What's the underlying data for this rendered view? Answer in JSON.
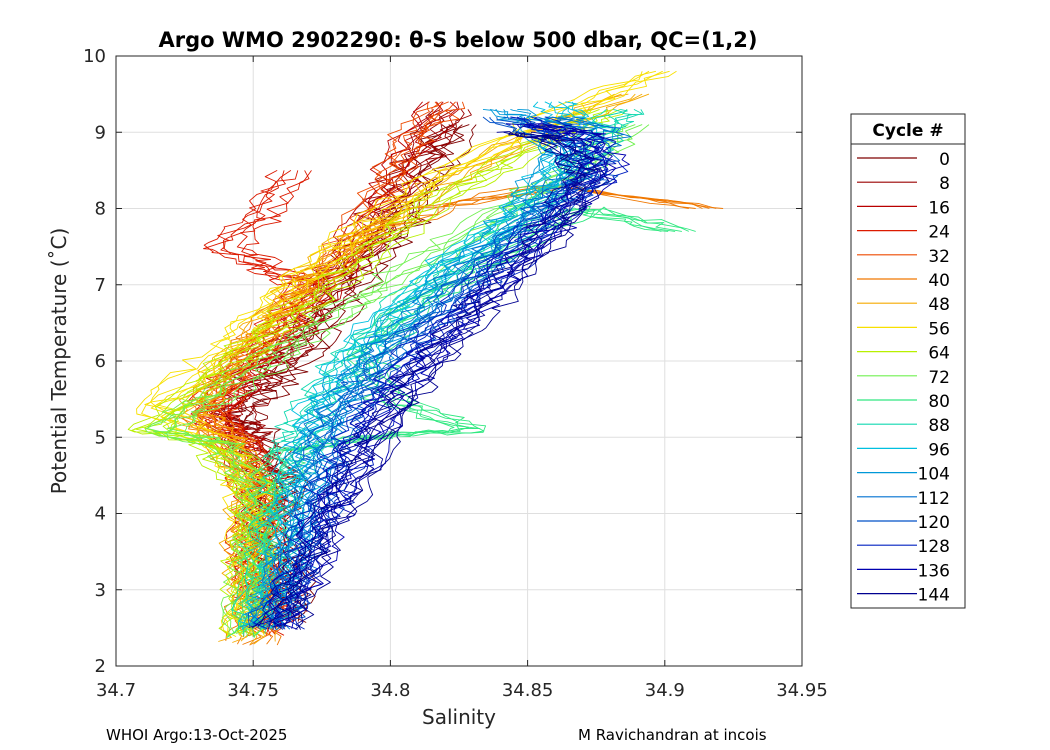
{
  "chart_data": {
    "type": "line",
    "title": "Argo WMO 2902290: θ-S below 500 dbar,  QC=(1,2)",
    "xlabel": "Salinity",
    "ylabel": "Potential Temperature (˚C)",
    "xlim": [
      34.7,
      34.95
    ],
    "ylim": [
      2,
      10
    ],
    "x_ticks": [
      34.7,
      34.75,
      34.8,
      34.85,
      34.9,
      34.95
    ],
    "x_tick_labels": [
      "34.7",
      "34.75",
      "34.8",
      "34.85",
      "34.9",
      "34.95"
    ],
    "y_ticks": [
      2,
      3,
      4,
      5,
      6,
      7,
      8,
      9,
      10
    ],
    "y_tick_labels": [
      "2",
      "3",
      "4",
      "5",
      "6",
      "7",
      "8",
      "9",
      "10"
    ],
    "grid": true,
    "legend": {
      "title": "Cycle #",
      "placement": "right-outside",
      "entries": [
        {
          "label": "0",
          "color": "#7f0000"
        },
        {
          "label": "8",
          "color": "#9a0000"
        },
        {
          "label": "16",
          "color": "#b90000"
        },
        {
          "label": "24",
          "color": "#dc1a00"
        },
        {
          "label": "32",
          "color": "#ee4a00"
        },
        {
          "label": "40",
          "color": "#f07800"
        },
        {
          "label": "48",
          "color": "#f5aa00"
        },
        {
          "label": "56",
          "color": "#f8e000"
        },
        {
          "label": "64",
          "color": "#b8f000"
        },
        {
          "label": "72",
          "color": "#70f050"
        },
        {
          "label": "80",
          "color": "#30e880"
        },
        {
          "label": "88",
          "color": "#10d8b0"
        },
        {
          "label": "96",
          "color": "#00c0e0"
        },
        {
          "label": "104",
          "color": "#0098d8"
        },
        {
          "label": "112",
          "color": "#0070d0"
        },
        {
          "label": "120",
          "color": "#0050c8"
        },
        {
          "label": "128",
          "color": "#0020c0"
        },
        {
          "label": "136",
          "color": "#0000b0"
        },
        {
          "label": "144",
          "color": "#000090"
        }
      ]
    },
    "series_envelope_note": "Each series is one cycle's approximate theta-S profile (salinity, theta) sampled at depth levels; estimated from the figure.",
    "series": [
      {
        "name": "0",
        "points": [
          [
            34.764,
            2.6
          ],
          [
            34.762,
            3.2
          ],
          [
            34.758,
            3.8
          ],
          [
            34.76,
            4.4
          ],
          [
            34.752,
            5.0
          ],
          [
            34.745,
            5.3
          ],
          [
            34.756,
            5.7
          ],
          [
            34.77,
            6.2
          ],
          [
            34.782,
            6.8
          ],
          [
            34.795,
            7.4
          ],
          [
            34.808,
            8.0
          ],
          [
            34.815,
            8.6
          ],
          [
            34.825,
            9.1
          ]
        ]
      },
      {
        "name": "8",
        "points": [
          [
            34.76,
            2.7
          ],
          [
            34.757,
            3.3
          ],
          [
            34.755,
            3.9
          ],
          [
            34.758,
            4.5
          ],
          [
            34.748,
            5.0
          ],
          [
            34.742,
            5.3
          ],
          [
            34.752,
            5.8
          ],
          [
            34.766,
            6.3
          ],
          [
            34.778,
            6.9
          ],
          [
            34.79,
            7.5
          ],
          [
            34.8,
            8.1
          ],
          [
            34.812,
            8.7
          ],
          [
            34.822,
            9.3
          ]
        ]
      },
      {
        "name": "16",
        "points": [
          [
            34.757,
            2.5
          ],
          [
            34.754,
            3.1
          ],
          [
            34.752,
            3.7
          ],
          [
            34.755,
            4.3
          ],
          [
            34.746,
            4.9
          ],
          [
            34.736,
            5.3
          ],
          [
            34.748,
            5.8
          ],
          [
            34.762,
            6.3
          ],
          [
            34.774,
            6.9
          ],
          [
            34.786,
            7.4
          ],
          [
            34.795,
            8.0
          ],
          [
            34.805,
            8.7
          ],
          [
            34.818,
            9.4
          ]
        ]
      },
      {
        "name": "24",
        "points": [
          [
            34.755,
            2.4
          ],
          [
            34.752,
            3.0
          ],
          [
            34.75,
            3.6
          ],
          [
            34.752,
            4.2
          ],
          [
            34.748,
            4.8
          ],
          [
            34.735,
            5.4
          ],
          [
            34.746,
            5.9
          ],
          [
            34.76,
            6.5
          ],
          [
            34.77,
            7.0
          ],
          [
            34.756,
            7.2
          ],
          [
            34.74,
            7.5
          ],
          [
            34.752,
            7.9
          ],
          [
            34.765,
            8.5
          ]
        ]
      },
      {
        "name": "32",
        "points": [
          [
            34.753,
            2.4
          ],
          [
            34.751,
            3.0
          ],
          [
            34.75,
            3.6
          ],
          [
            34.752,
            4.2
          ],
          [
            34.745,
            4.8
          ],
          [
            34.733,
            5.3
          ],
          [
            34.745,
            5.9
          ],
          [
            34.758,
            6.4
          ],
          [
            34.772,
            7.0
          ],
          [
            34.788,
            7.6
          ],
          [
            34.798,
            8.3
          ],
          [
            34.808,
            8.9
          ],
          [
            34.82,
            9.4
          ]
        ]
      },
      {
        "name": "40",
        "points": [
          [
            34.75,
            2.3
          ],
          [
            34.75,
            3.0
          ],
          [
            34.749,
            3.7
          ],
          [
            34.751,
            4.3
          ],
          [
            34.743,
            4.9
          ],
          [
            34.73,
            5.3
          ],
          [
            34.742,
            5.9
          ],
          [
            34.756,
            6.5
          ],
          [
            34.772,
            7.0
          ],
          [
            34.79,
            7.6
          ],
          [
            34.815,
            8.0
          ],
          [
            34.86,
            8.3
          ],
          [
            34.915,
            8.0
          ]
        ]
      },
      {
        "name": "48",
        "points": [
          [
            34.748,
            2.3
          ],
          [
            34.749,
            3.0
          ],
          [
            34.748,
            3.7
          ],
          [
            34.75,
            4.3
          ],
          [
            34.742,
            4.9
          ],
          [
            34.728,
            5.3
          ],
          [
            34.74,
            5.9
          ],
          [
            34.754,
            6.5
          ],
          [
            34.77,
            7.1
          ],
          [
            34.792,
            7.7
          ],
          [
            34.818,
            8.3
          ],
          [
            34.85,
            8.9
          ],
          [
            34.888,
            9.5
          ]
        ]
      },
      {
        "name": "56",
        "points": [
          [
            34.746,
            2.4
          ],
          [
            34.748,
            3.0
          ],
          [
            34.748,
            3.7
          ],
          [
            34.749,
            4.3
          ],
          [
            34.738,
            4.9
          ],
          [
            34.712,
            5.4
          ],
          [
            34.732,
            5.9
          ],
          [
            34.75,
            6.5
          ],
          [
            34.768,
            7.1
          ],
          [
            34.792,
            7.8
          ],
          [
            34.82,
            8.5
          ],
          [
            34.86,
            9.2
          ],
          [
            34.898,
            9.8
          ]
        ]
      },
      {
        "name": "64",
        "points": [
          [
            34.745,
            2.4
          ],
          [
            34.748,
            3.1
          ],
          [
            34.749,
            3.7
          ],
          [
            34.75,
            4.3
          ],
          [
            34.735,
            4.9
          ],
          [
            34.712,
            5.1
          ],
          [
            34.73,
            5.6
          ],
          [
            34.75,
            6.2
          ],
          [
            34.772,
            6.8
          ],
          [
            34.796,
            7.5
          ],
          [
            34.822,
            8.2
          ],
          [
            34.852,
            8.8
          ],
          [
            34.88,
            9.3
          ]
        ]
      },
      {
        "name": "72",
        "points": [
          [
            34.745,
            2.4
          ],
          [
            34.749,
            3.1
          ],
          [
            34.75,
            3.7
          ],
          [
            34.752,
            4.3
          ],
          [
            34.74,
            4.9
          ],
          [
            34.716,
            5.1
          ],
          [
            34.736,
            5.5
          ],
          [
            34.756,
            6.0
          ],
          [
            34.78,
            6.6
          ],
          [
            34.808,
            7.2
          ],
          [
            34.838,
            7.9
          ],
          [
            34.866,
            8.5
          ],
          [
            34.888,
            9.1
          ]
        ]
      },
      {
        "name": "80",
        "points": [
          [
            34.748,
            2.4
          ],
          [
            34.752,
            3.1
          ],
          [
            34.755,
            3.7
          ],
          [
            34.758,
            4.3
          ],
          [
            34.762,
            4.8
          ],
          [
            34.79,
            5.0
          ],
          [
            34.83,
            5.1
          ],
          [
            34.8,
            5.5
          ],
          [
            34.79,
            6.1
          ],
          [
            34.812,
            6.8
          ],
          [
            34.84,
            7.4
          ],
          [
            34.87,
            8.0
          ],
          [
            34.905,
            7.7
          ]
        ]
      },
      {
        "name": "88",
        "points": [
          [
            34.75,
            2.5
          ],
          [
            34.755,
            3.1
          ],
          [
            34.758,
            3.8
          ],
          [
            34.762,
            4.4
          ],
          [
            34.765,
            4.9
          ],
          [
            34.772,
            5.4
          ],
          [
            34.785,
            6.0
          ],
          [
            34.8,
            6.6
          ],
          [
            34.82,
            7.2
          ],
          [
            34.845,
            7.8
          ],
          [
            34.865,
            8.4
          ],
          [
            34.878,
            9.0
          ],
          [
            34.885,
            9.3
          ]
        ]
      },
      {
        "name": "96",
        "points": [
          [
            34.752,
            2.5
          ],
          [
            34.758,
            3.1
          ],
          [
            34.762,
            3.8
          ],
          [
            34.766,
            4.4
          ],
          [
            34.77,
            5.0
          ],
          [
            34.778,
            5.6
          ],
          [
            34.79,
            6.2
          ],
          [
            34.806,
            6.8
          ],
          [
            34.826,
            7.4
          ],
          [
            34.848,
            8.0
          ],
          [
            34.862,
            8.6
          ],
          [
            34.87,
            9.1
          ],
          [
            34.86,
            9.4
          ]
        ]
      },
      {
        "name": "104",
        "points": [
          [
            34.755,
            2.5
          ],
          [
            34.76,
            3.1
          ],
          [
            34.764,
            3.8
          ],
          [
            34.768,
            4.4
          ],
          [
            34.772,
            5.0
          ],
          [
            34.782,
            5.6
          ],
          [
            34.796,
            6.2
          ],
          [
            34.812,
            6.8
          ],
          [
            34.83,
            7.4
          ],
          [
            34.85,
            8.0
          ],
          [
            34.86,
            8.6
          ],
          [
            34.855,
            9.1
          ],
          [
            34.84,
            9.3
          ]
        ]
      },
      {
        "name": "112",
        "points": [
          [
            34.756,
            2.5
          ],
          [
            34.762,
            3.1
          ],
          [
            34.768,
            3.8
          ],
          [
            34.772,
            4.4
          ],
          [
            34.776,
            5.0
          ],
          [
            34.786,
            5.6
          ],
          [
            34.8,
            6.2
          ],
          [
            34.818,
            6.8
          ],
          [
            34.836,
            7.4
          ],
          [
            34.856,
            8.0
          ],
          [
            34.872,
            8.6
          ],
          [
            34.878,
            9.0
          ],
          [
            34.86,
            9.2
          ]
        ]
      },
      {
        "name": "120",
        "points": [
          [
            34.757,
            2.5
          ],
          [
            34.764,
            3.1
          ],
          [
            34.77,
            3.8
          ],
          [
            34.776,
            4.4
          ],
          [
            34.78,
            5.0
          ],
          [
            34.79,
            5.6
          ],
          [
            34.806,
            6.2
          ],
          [
            34.824,
            6.8
          ],
          [
            34.842,
            7.4
          ],
          [
            34.858,
            8.0
          ],
          [
            34.874,
            8.4
          ],
          [
            34.86,
            8.9
          ],
          [
            34.84,
            9.2
          ]
        ]
      },
      {
        "name": "128",
        "points": [
          [
            34.758,
            2.5
          ],
          [
            34.766,
            3.1
          ],
          [
            34.772,
            3.8
          ],
          [
            34.78,
            4.4
          ],
          [
            34.788,
            5.0
          ],
          [
            34.798,
            5.6
          ],
          [
            34.812,
            6.2
          ],
          [
            34.828,
            6.8
          ],
          [
            34.846,
            7.4
          ],
          [
            34.862,
            8.0
          ],
          [
            34.876,
            8.5
          ],
          [
            34.87,
            8.9
          ],
          [
            34.85,
            9.2
          ]
        ]
      },
      {
        "name": "136",
        "points": [
          [
            34.758,
            2.5
          ],
          [
            34.767,
            3.1
          ],
          [
            34.775,
            3.8
          ],
          [
            34.784,
            4.4
          ],
          [
            34.792,
            5.0
          ],
          [
            34.802,
            5.6
          ],
          [
            34.816,
            6.2
          ],
          [
            34.832,
            6.8
          ],
          [
            34.848,
            7.4
          ],
          [
            34.864,
            8.0
          ],
          [
            34.878,
            8.6
          ],
          [
            34.87,
            9.0
          ],
          [
            34.85,
            9.1
          ]
        ]
      },
      {
        "name": "144",
        "points": [
          [
            34.76,
            2.5
          ],
          [
            34.768,
            3.1
          ],
          [
            34.776,
            3.8
          ],
          [
            34.786,
            4.4
          ],
          [
            34.795,
            5.0
          ],
          [
            34.806,
            5.6
          ],
          [
            34.82,
            6.2
          ],
          [
            34.836,
            6.8
          ],
          [
            34.852,
            7.4
          ],
          [
            34.866,
            8.0
          ],
          [
            34.872,
            8.5
          ],
          [
            34.86,
            8.9
          ],
          [
            34.845,
            9.0
          ]
        ]
      }
    ]
  },
  "footer": {
    "left": "WHOI Argo:13-Oct-2025",
    "right": "M Ravichandran at incois"
  }
}
